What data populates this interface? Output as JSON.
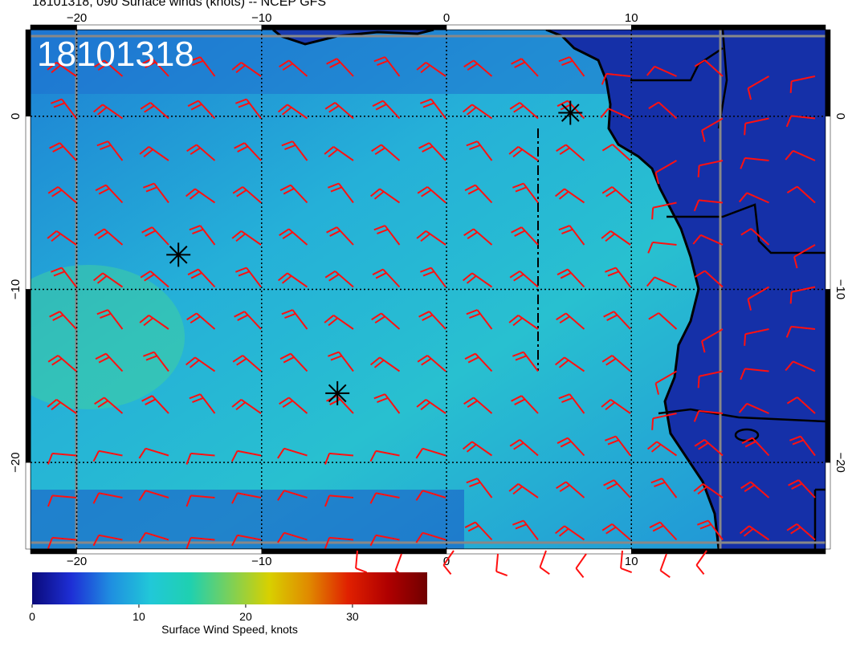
{
  "title": "18101318, 090 Surface winds (knots) -- NCEP GFS",
  "timestamp_overlay": "18101318",
  "map": {
    "lon_range": [
      -22.5,
      20.5
    ],
    "lat_range": [
      -25,
      5
    ],
    "lon_ticks": [
      -20,
      -10,
      0,
      10
    ],
    "lat_ticks": [
      0,
      -10,
      -20
    ],
    "lon_tick_labels": [
      "−20",
      "−10",
      "0",
      "10"
    ],
    "lat_tick_labels": [
      "0",
      "−10",
      "−20"
    ],
    "ocean_color": "#1f8fd8",
    "land_color": "#1530a8",
    "barb_color": "#ff1010",
    "grid_style": "dotted",
    "storm_markers": [
      {
        "lon": -14.5,
        "lat": -8
      },
      {
        "lon": -5.9,
        "lat": -16
      },
      {
        "lon": 6.7,
        "lat": 0.2
      }
    ]
  },
  "colorbar": {
    "label": "Surface Wind Speed, knots",
    "ticks": [
      0,
      10,
      20,
      30
    ],
    "range": [
      0,
      37
    ],
    "colors": [
      "#0a0a7a",
      "#1e2fd6",
      "#1f8fe0",
      "#21c8d8",
      "#1fd0b0",
      "#7ad05a",
      "#d8d000",
      "#e08a00",
      "#e02000",
      "#b00000",
      "#700000"
    ]
  }
}
